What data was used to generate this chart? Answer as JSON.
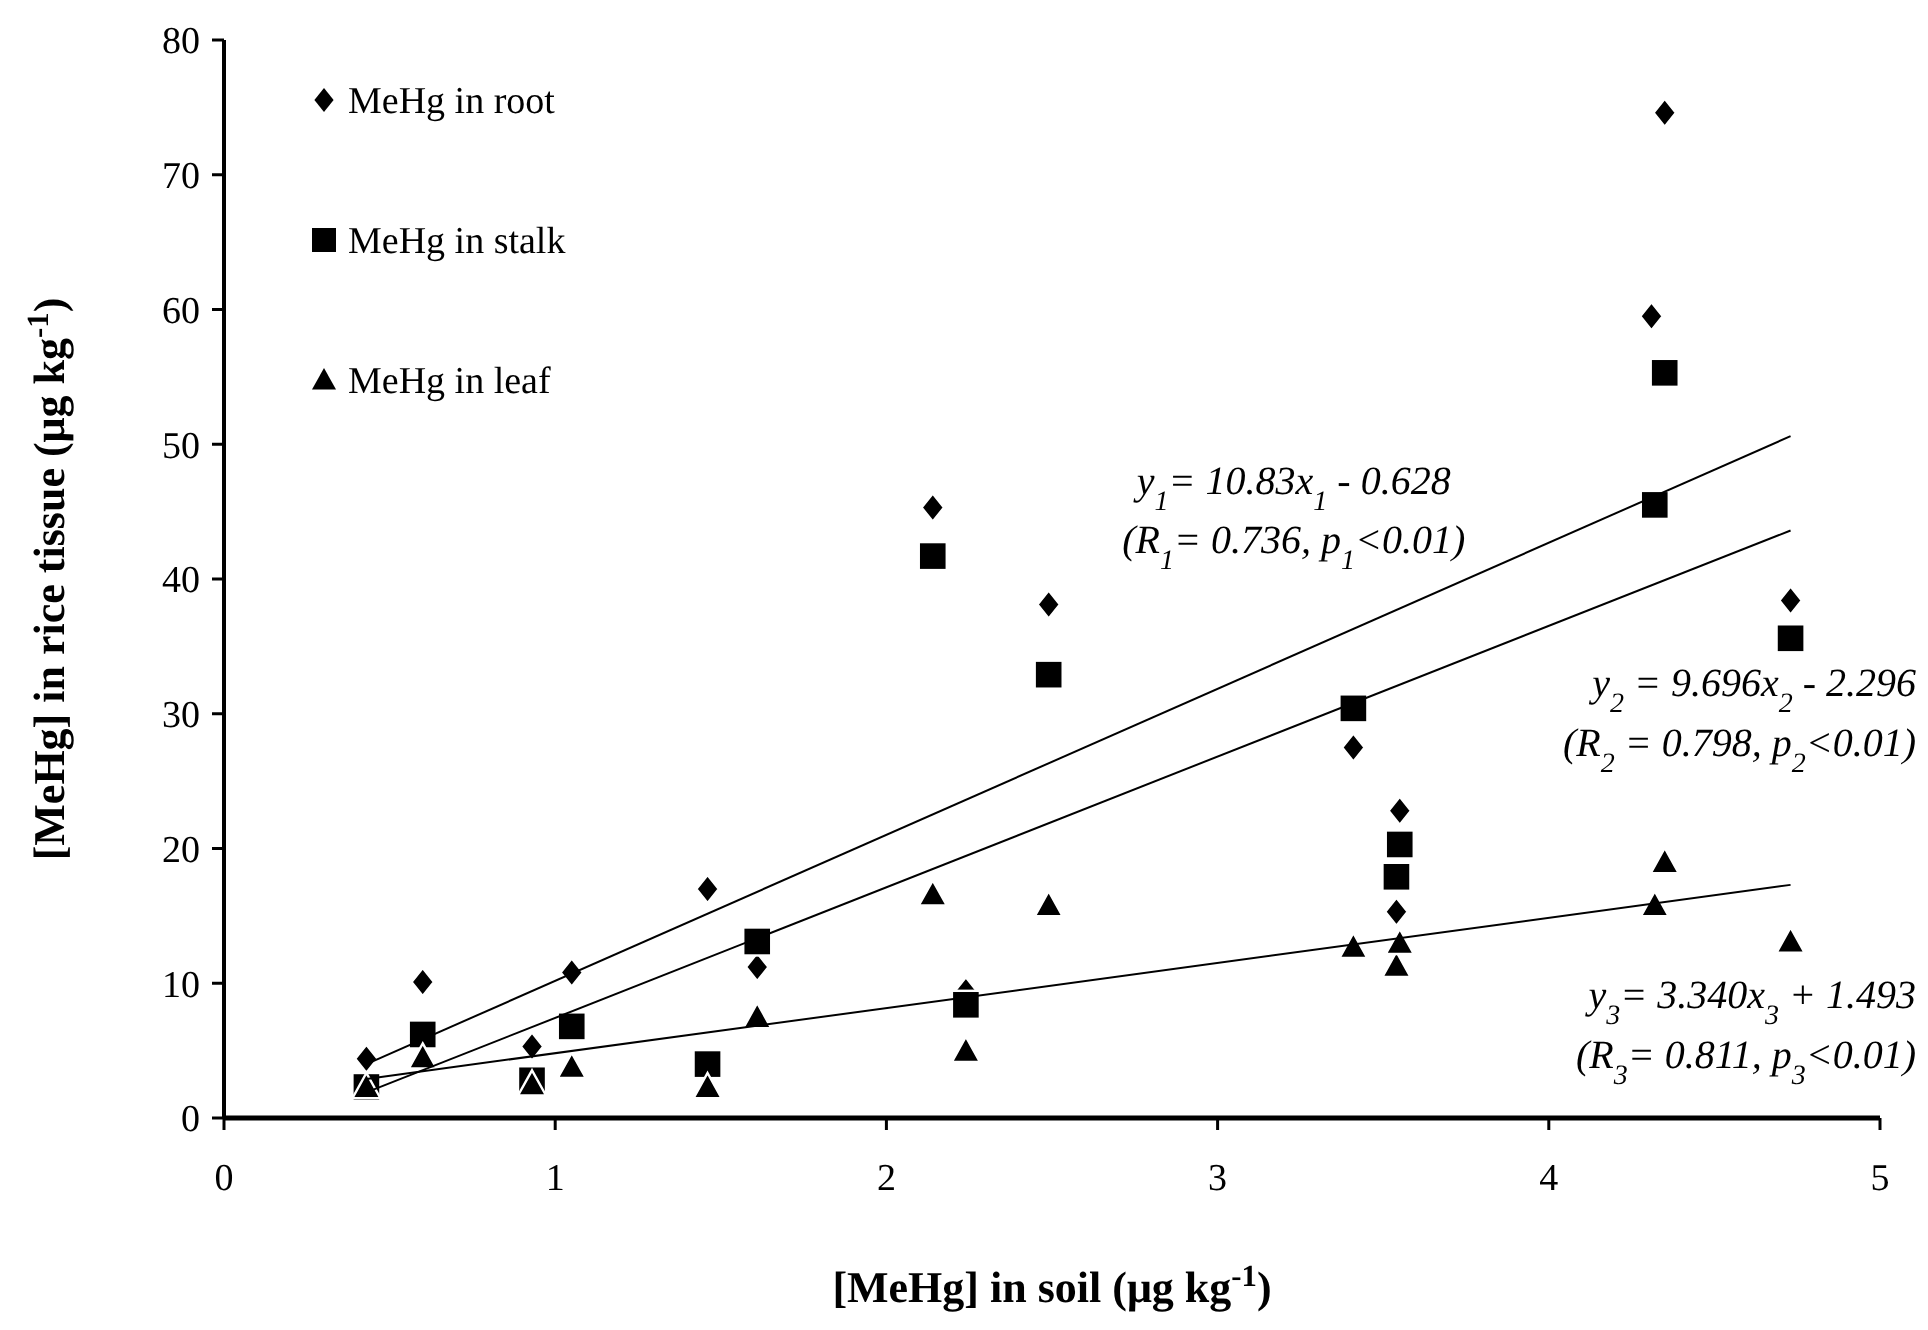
{
  "chart_data": {
    "type": "scatter",
    "xlabel": "[MeHg] in soil (μg kg$^{-1}$)",
    "ylabel": "[MeHg] in rice tissue (μg kg$^{-1}$)",
    "xlim": [
      0,
      5
    ],
    "xticks": [
      0,
      1,
      2,
      3,
      4,
      5
    ],
    "ylim": [
      0,
      80
    ],
    "yticks": [
      0,
      10,
      20,
      30,
      40,
      50,
      60,
      70,
      80
    ],
    "grid": false,
    "legend": "top left",
    "series": [
      {
        "name": "MeHg in root",
        "color": "#000000",
        "marker": "diamond",
        "x": [
          0.43,
          0.6,
          0.93,
          1.05,
          1.46,
          1.61,
          2.14,
          2.24,
          2.49,
          3.41,
          3.54,
          3.55,
          4.31,
          4.35,
          4.73
        ],
        "values": [
          4.4,
          10.1,
          5.3,
          10.8,
          17.0,
          11.2,
          45.3,
          9.4,
          38.1,
          27.5,
          15.3,
          22.8,
          59.5,
          74.6,
          38.4
        ]
      },
      {
        "name": "MeHg in stalk",
        "color": "#000000",
        "marker": "square",
        "x": [
          0.43,
          0.6,
          0.93,
          1.05,
          1.46,
          1.61,
          2.14,
          2.24,
          2.49,
          3.41,
          3.54,
          3.55,
          4.32,
          4.35,
          4.73
        ],
        "values": [
          2.3,
          6.2,
          2.8,
          6.8,
          4.0,
          13.1,
          41.7,
          8.4,
          32.9,
          30.4,
          17.9,
          20.3,
          45.5,
          55.3,
          35.6
        ]
      },
      {
        "name": "MeHg in leaf",
        "color": "#000000",
        "marker": "triangle",
        "x": [
          0.43,
          0.6,
          0.93,
          1.05,
          1.46,
          1.61,
          2.14,
          2.24,
          2.49,
          3.41,
          3.54,
          3.55,
          4.32,
          4.35,
          4.73
        ],
        "values": [
          2.3,
          4.5,
          2.5,
          3.8,
          2.3,
          7.5,
          16.6,
          5.0,
          15.8,
          12.7,
          11.3,
          13.0,
          15.8,
          19.0,
          13.1
        ]
      },
      {
        "type": "line",
        "color": "#000000",
        "marker": "none",
        "x": [
          0.43,
          4.73
        ],
        "values": [
          4.0,
          50.6
        ]
      },
      {
        "type": "line",
        "color": "#000000",
        "marker": "none",
        "x": [
          0.43,
          4.73
        ],
        "values": [
          1.9,
          43.6
        ]
      },
      {
        "type": "line",
        "color": "#000000",
        "marker": "none",
        "x": [
          0.43,
          4.73
        ],
        "values": [
          2.9,
          17.3
        ]
      }
    ],
    "annotations": [
      "y$_{1}$= 10.83x$_{1}$ - 0.628",
      "(R$_{1}$= 0.736, p$_{1}$<0.01)",
      "y$_{2}$ = 9.696x$_{2}$ - 2.296",
      "(R$_{2}$ = 0.798, p$_{2}$<0.01)",
      "y$_{3}$= 3.340x$_{3}$ + 1.493",
      "(R$_{3}$= 0.811, p$_{3}$<0.01)"
    ]
  }
}
